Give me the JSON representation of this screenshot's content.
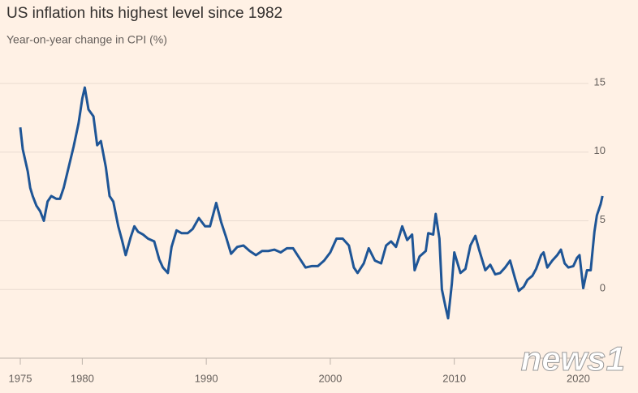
{
  "chart_data": {
    "type": "line",
    "title": "US inflation hits highest level since 1982",
    "subtitle": "Year-on-year change in CPI (%)",
    "watermark": "news1",
    "xlim": [
      1975,
      2022
    ],
    "xticks": [
      1975,
      1980,
      1990,
      2000,
      2010,
      2020
    ],
    "ylim": [
      -5,
      16
    ],
    "yticks": [
      0,
      5,
      10,
      15
    ],
    "grid": true,
    "series": [
      {
        "name": "CPI",
        "color": "#1e5596",
        "x": [
          1975.0,
          1975.2,
          1975.4,
          1975.6,
          1975.8,
          1976.0,
          1976.3,
          1976.6,
          1976.9,
          1977.2,
          1977.5,
          1977.9,
          1978.2,
          1978.5,
          1978.9,
          1979.3,
          1979.7,
          1980.0,
          1980.2,
          1980.5,
          1980.9,
          1981.2,
          1981.5,
          1981.9,
          1982.2,
          1982.5,
          1982.9,
          1983.2,
          1983.5,
          1983.9,
          1984.2,
          1984.5,
          1984.9,
          1985.3,
          1985.8,
          1986.2,
          1986.5,
          1986.9,
          1987.2,
          1987.6,
          1988.0,
          1988.5,
          1988.9,
          1989.4,
          1989.9,
          1990.3,
          1990.8,
          1991.2,
          1991.6,
          1992.0,
          1992.5,
          1993.0,
          1993.5,
          1994.0,
          1994.5,
          1995.0,
          1995.5,
          1996.0,
          1996.5,
          1997.0,
          1997.5,
          1998.0,
          1998.5,
          1999.0,
          1999.5,
          2000.0,
          2000.5,
          2001.0,
          2001.5,
          2001.9,
          2002.2,
          2002.7,
          2003.1,
          2003.6,
          2004.1,
          2004.5,
          2004.9,
          2005.3,
          2005.8,
          2006.2,
          2006.6,
          2006.8,
          2007.2,
          2007.7,
          2007.9,
          2008.3,
          2008.5,
          2008.8,
          2009.0,
          2009.3,
          2009.5,
          2009.8,
          2010.0,
          2010.5,
          2010.9,
          2011.3,
          2011.7,
          2012.0,
          2012.5,
          2012.9,
          2013.3,
          2013.7,
          2014.1,
          2014.5,
          2014.9,
          2015.2,
          2015.6,
          2015.9,
          2016.3,
          2016.6,
          2017.0,
          2017.2,
          2017.5,
          2017.9,
          2018.3,
          2018.6,
          2018.9,
          2019.2,
          2019.6,
          2019.9,
          2020.1,
          2020.4,
          2020.7,
          2021.0,
          2021.3,
          2021.5,
          2021.8,
          2021.95
        ],
        "values": [
          11.8,
          10.2,
          9.4,
          8.6,
          7.4,
          6.8,
          6.1,
          5.7,
          5.0,
          6.4,
          6.8,
          6.6,
          6.6,
          7.4,
          8.9,
          10.4,
          12.1,
          13.9,
          14.7,
          13.1,
          12.6,
          10.5,
          10.8,
          8.9,
          6.8,
          6.4,
          4.6,
          3.6,
          2.5,
          3.8,
          4.6,
          4.2,
          4.0,
          3.7,
          3.5,
          2.2,
          1.6,
          1.2,
          3.1,
          4.3,
          4.1,
          4.1,
          4.4,
          5.2,
          4.6,
          4.6,
          6.3,
          4.9,
          3.8,
          2.6,
          3.1,
          3.2,
          2.8,
          2.5,
          2.8,
          2.8,
          2.9,
          2.7,
          3.0,
          3.0,
          2.3,
          1.6,
          1.7,
          1.7,
          2.1,
          2.7,
          3.7,
          3.7,
          3.2,
          1.6,
          1.2,
          1.9,
          3.0,
          2.1,
          1.9,
          3.2,
          3.5,
          3.1,
          4.6,
          3.6,
          4.0,
          1.4,
          2.4,
          2.8,
          4.1,
          4.0,
          5.5,
          3.7,
          0.0,
          -1.3,
          -2.1,
          0.4,
          2.7,
          1.2,
          1.5,
          3.2,
          3.9,
          2.9,
          1.4,
          1.8,
          1.1,
          1.2,
          1.6,
          2.1,
          0.8,
          -0.1,
          0.2,
          0.7,
          1.0,
          1.5,
          2.5,
          2.7,
          1.6,
          2.1,
          2.5,
          2.9,
          1.9,
          1.6,
          1.7,
          2.3,
          2.5,
          0.1,
          1.4,
          1.4,
          4.2,
          5.4,
          6.2,
          6.8
        ]
      }
    ]
  }
}
